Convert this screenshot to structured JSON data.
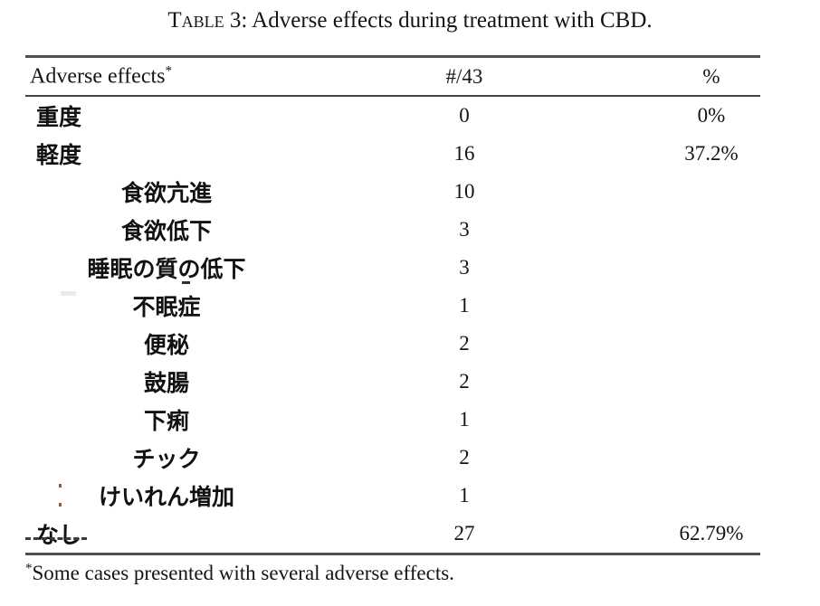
{
  "title": {
    "word_sc": "Table",
    "rest": "3: Adverse effects during treatment with CBD."
  },
  "table": {
    "headers": {
      "effects": "Adverse effects",
      "effects_note_mark": "*",
      "count": "#/43",
      "percent": "%"
    },
    "rows": [
      {
        "label": "重度",
        "indent": false,
        "count": "0",
        "pct": "0%"
      },
      {
        "label": "軽度",
        "indent": false,
        "count": "16",
        "pct": "37.2%"
      },
      {
        "label": "食欲亢進",
        "indent": true,
        "count": "10",
        "pct": ""
      },
      {
        "label": "食欲低下",
        "indent": true,
        "count": "3",
        "pct": ""
      },
      {
        "label": "睡眠の質の低下",
        "indent": true,
        "count": "3",
        "pct": ""
      },
      {
        "label": "不眠症",
        "indent": true,
        "count": "1",
        "pct": ""
      },
      {
        "label": "便秘",
        "indent": true,
        "count": "2",
        "pct": ""
      },
      {
        "label": "鼓腸",
        "indent": true,
        "count": "2",
        "pct": ""
      },
      {
        "label": "下痢",
        "indent": true,
        "count": "1",
        "pct": ""
      },
      {
        "label": "チック",
        "indent": true,
        "count": "2",
        "pct": ""
      },
      {
        "label": "けいれん増加",
        "indent": true,
        "count": "1",
        "pct": ""
      },
      {
        "label": "なし",
        "indent": false,
        "count": "27",
        "pct": "62.79%"
      }
    ]
  },
  "footnote": {
    "mark": "*",
    "text": "Some cases presented with several adverse effects."
  }
}
